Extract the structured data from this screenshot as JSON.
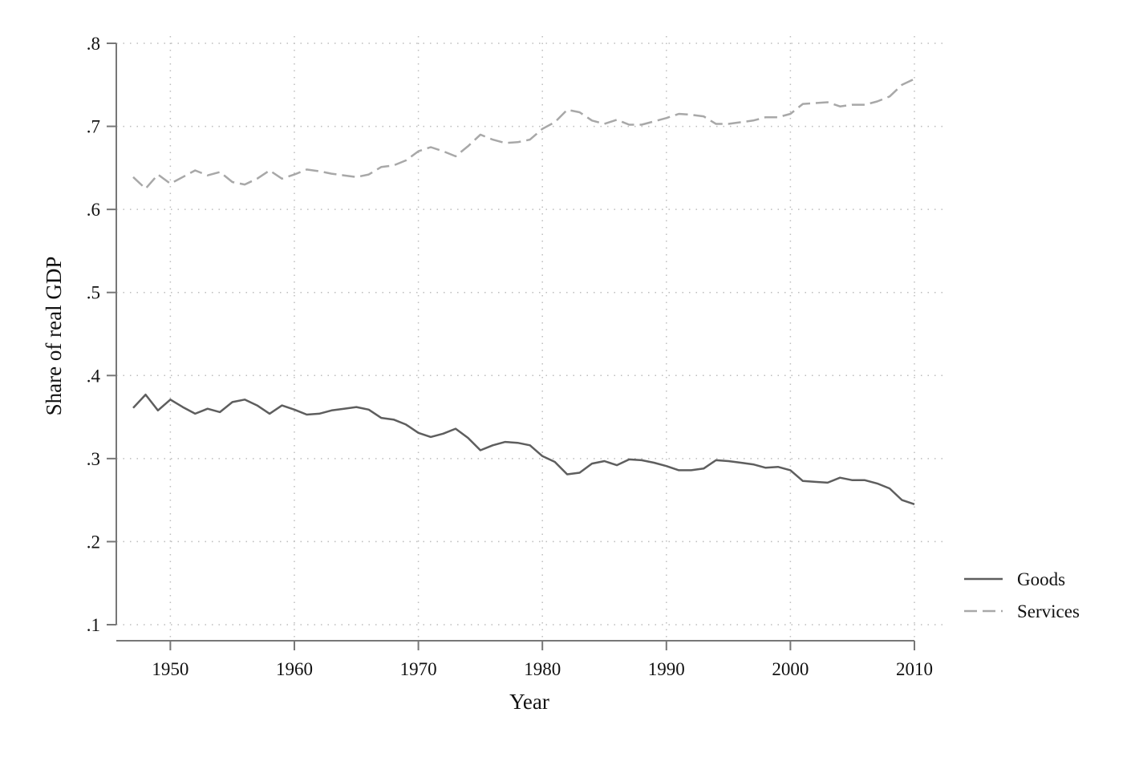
{
  "chart_data": {
    "type": "line",
    "xlabel": "Year",
    "ylabel": "Share of real GDP",
    "xlim": [
      1946,
      2011
    ],
    "ylim": [
      0.1,
      0.8
    ],
    "xticks": [
      1950,
      1960,
      1970,
      1980,
      1990,
      2000,
      2010
    ],
    "xtick_labels": [
      "1950",
      "1960",
      "1970",
      "1980",
      "1990",
      "2000",
      "2010"
    ],
    "yticks": [
      0.1,
      0.2,
      0.3,
      0.4,
      0.5,
      0.6,
      0.7,
      0.8
    ],
    "ytick_labels": [
      ".1",
      ".2",
      ".3",
      ".4",
      ".5",
      ".6",
      ".7",
      ".8"
    ],
    "grid": "dotted",
    "legend_position": "right",
    "x": [
      1947,
      1948,
      1949,
      1950,
      1951,
      1952,
      1953,
      1954,
      1955,
      1956,
      1957,
      1958,
      1959,
      1960,
      1961,
      1962,
      1963,
      1964,
      1965,
      1966,
      1967,
      1968,
      1969,
      1970,
      1971,
      1972,
      1973,
      1974,
      1975,
      1976,
      1977,
      1978,
      1979,
      1980,
      1981,
      1982,
      1983,
      1984,
      1985,
      1986,
      1987,
      1988,
      1989,
      1990,
      1991,
      1992,
      1993,
      1994,
      1995,
      1996,
      1997,
      1998,
      1999,
      2000,
      2001,
      2002,
      2003,
      2004,
      2005,
      2006,
      2007,
      2008,
      2009,
      2010
    ],
    "series": [
      {
        "name": "Goods",
        "color": "#5e5e5e",
        "dash": "solid",
        "values": [
          0.361,
          0.377,
          0.358,
          0.371,
          0.362,
          0.354,
          0.36,
          0.356,
          0.368,
          0.371,
          0.364,
          0.354,
          0.364,
          0.359,
          0.353,
          0.354,
          0.358,
          0.36,
          0.362,
          0.359,
          0.349,
          0.347,
          0.341,
          0.331,
          0.326,
          0.33,
          0.336,
          0.325,
          0.31,
          0.316,
          0.32,
          0.319,
          0.316,
          0.303,
          0.296,
          0.281,
          0.283,
          0.294,
          0.297,
          0.292,
          0.299,
          0.298,
          0.295,
          0.291,
          0.286,
          0.286,
          0.288,
          0.298,
          0.297,
          0.295,
          0.293,
          0.289,
          0.29,
          0.286,
          0.273,
          0.272,
          0.271,
          0.277,
          0.274,
          0.274,
          0.27,
          0.264,
          0.25,
          0.245
        ]
      },
      {
        "name": "Services",
        "color": "#a8a8a8",
        "dash": "dashed",
        "values": [
          0.639,
          0.625,
          0.642,
          0.631,
          0.639,
          0.647,
          0.641,
          0.645,
          0.633,
          0.63,
          0.637,
          0.647,
          0.637,
          0.642,
          0.648,
          0.646,
          0.643,
          0.641,
          0.639,
          0.642,
          0.651,
          0.653,
          0.659,
          0.67,
          0.675,
          0.67,
          0.664,
          0.676,
          0.69,
          0.684,
          0.68,
          0.681,
          0.684,
          0.697,
          0.705,
          0.72,
          0.717,
          0.707,
          0.703,
          0.708,
          0.702,
          0.702,
          0.706,
          0.71,
          0.715,
          0.714,
          0.712,
          0.703,
          0.703,
          0.705,
          0.707,
          0.711,
          0.711,
          0.715,
          0.727,
          0.728,
          0.729,
          0.724,
          0.726,
          0.726,
          0.73,
          0.736,
          0.75,
          0.757
        ]
      }
    ]
  }
}
